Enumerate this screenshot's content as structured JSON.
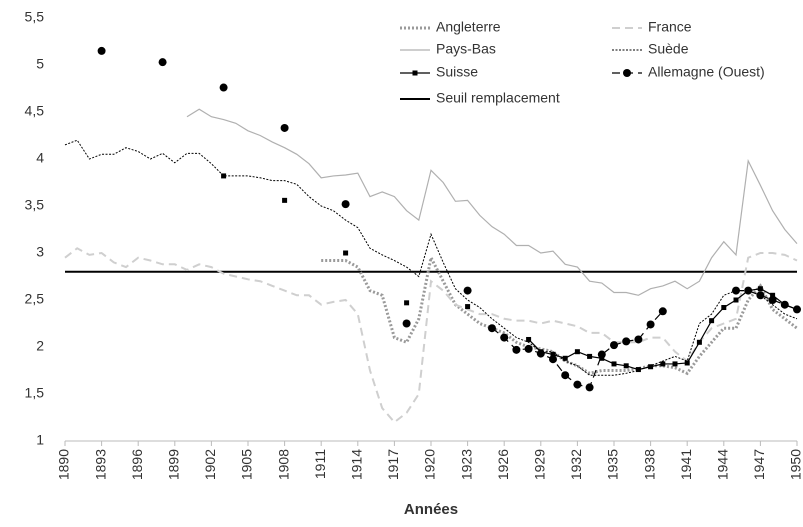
{
  "chart_data": {
    "type": "line",
    "x_label": "Années",
    "x": [
      1890,
      1891,
      1892,
      1893,
      1894,
      1895,
      1896,
      1897,
      1898,
      1899,
      1900,
      1901,
      1902,
      1903,
      1904,
      1905,
      1906,
      1907,
      1908,
      1909,
      1910,
      1911,
      1912,
      1913,
      1914,
      1915,
      1916,
      1917,
      1918,
      1919,
      1920,
      1921,
      1922,
      1923,
      1924,
      1925,
      1926,
      1927,
      1928,
      1929,
      1930,
      1931,
      1932,
      1933,
      1934,
      1935,
      1936,
      1937,
      1938,
      1939,
      1940,
      1941,
      1942,
      1943,
      1944,
      1945,
      1946,
      1947,
      1948,
      1949,
      1950
    ],
    "xlim": [
      1890,
      1950
    ],
    "xticks": [
      1890,
      1893,
      1896,
      1899,
      1902,
      1905,
      1908,
      1911,
      1914,
      1917,
      1920,
      1923,
      1926,
      1929,
      1932,
      1935,
      1938,
      1941,
      1944,
      1947,
      1950
    ],
    "ylim": [
      1,
      5.5
    ],
    "yticks": [
      1,
      {
        "value": 1.5,
        "label": "1,5"
      },
      2,
      {
        "value": 2.5,
        "label": "2,5"
      },
      3,
      {
        "value": 3.5,
        "label": "3,5"
      },
      4,
      {
        "value": 4.5,
        "label": "4,5"
      },
      5,
      {
        "value": 5.5,
        "label": "5,5"
      }
    ],
    "grid": false,
    "legend": "top-right",
    "series": [
      {
        "name": "Angleterre",
        "color": "#9a9a9a",
        "dash": "dotted",
        "width": 3,
        "values": [
          null,
          null,
          null,
          null,
          null,
          null,
          null,
          null,
          null,
          null,
          null,
          null,
          null,
          null,
          null,
          null,
          null,
          null,
          null,
          null,
          null,
          2.92,
          2.92,
          2.92,
          2.85,
          2.6,
          2.55,
          2.1,
          2.05,
          2.3,
          2.95,
          2.7,
          2.45,
          2.35,
          2.25,
          2.2,
          2.15,
          2.05,
          2.0,
          1.98,
          1.95,
          1.85,
          1.8,
          1.72,
          1.75,
          1.75,
          1.75,
          1.77,
          1.8,
          1.8,
          1.78,
          1.72,
          1.9,
          2.05,
          2.2,
          2.2,
          2.5,
          2.65,
          2.4,
          2.3,
          2.2
        ]
      },
      {
        "name": "France",
        "color": "#cfcfcf",
        "dash": "dashed",
        "width": 2,
        "values": [
          2.95,
          3.05,
          2.98,
          3.0,
          2.9,
          2.85,
          2.95,
          2.92,
          2.88,
          2.88,
          2.82,
          2.88,
          2.85,
          2.78,
          2.75,
          2.72,
          2.7,
          2.65,
          2.6,
          2.55,
          2.55,
          2.45,
          2.48,
          2.5,
          2.35,
          1.75,
          1.35,
          1.2,
          1.3,
          1.5,
          2.7,
          2.6,
          2.45,
          2.4,
          2.35,
          2.35,
          2.3,
          2.28,
          2.28,
          2.25,
          2.28,
          2.25,
          2.22,
          2.15,
          2.15,
          2.05,
          2.05,
          2.05,
          2.1,
          2.1,
          1.95,
          1.85,
          2.05,
          2.2,
          2.25,
          2.3,
          2.95,
          3.0,
          3.0,
          2.98,
          2.92
        ]
      },
      {
        "name": "Pays-Bas",
        "color": "#b0b0b0",
        "dash": "solid",
        "width": 1.2,
        "values": [
          null,
          null,
          null,
          null,
          null,
          null,
          null,
          null,
          null,
          null,
          4.45,
          4.53,
          4.45,
          4.42,
          4.38,
          4.3,
          4.25,
          4.18,
          4.12,
          4.05,
          3.95,
          3.8,
          3.82,
          3.83,
          3.85,
          3.6,
          3.65,
          3.6,
          3.45,
          3.35,
          3.88,
          3.75,
          3.55,
          3.56,
          3.4,
          3.28,
          3.2,
          3.08,
          3.08,
          3.0,
          3.02,
          2.88,
          2.85,
          2.7,
          2.68,
          2.58,
          2.58,
          2.55,
          2.62,
          2.65,
          2.7,
          2.62,
          2.7,
          2.95,
          3.12,
          2.98,
          3.98,
          3.72,
          3.45,
          3.25,
          3.1
        ]
      },
      {
        "name": "Suède",
        "color": "#000000",
        "dash": "fine-dotted",
        "width": 1,
        "values": [
          4.15,
          4.2,
          4.0,
          4.05,
          4.05,
          4.12,
          4.08,
          4.0,
          4.06,
          3.96,
          4.06,
          4.06,
          3.95,
          3.82,
          3.82,
          3.82,
          3.8,
          3.77,
          3.77,
          3.73,
          3.6,
          3.5,
          3.45,
          3.35,
          3.27,
          3.05,
          2.98,
          2.92,
          2.85,
          2.75,
          3.2,
          2.9,
          2.62,
          2.5,
          2.42,
          2.3,
          2.2,
          2.1,
          2.05,
          1.95,
          1.95,
          1.85,
          1.8,
          1.7,
          1.7,
          1.7,
          1.72,
          1.75,
          1.8,
          1.85,
          1.9,
          1.85,
          2.25,
          2.35,
          2.55,
          2.6,
          2.6,
          2.55,
          2.45,
          2.35,
          2.3
        ]
      },
      {
        "name": "Suisse",
        "color": "#000000",
        "dash": "solid",
        "width": 1.2,
        "marker": "square",
        "values": [
          null,
          null,
          null,
          null,
          null,
          null,
          null,
          null,
          null,
          null,
          null,
          null,
          null,
          3.82,
          null,
          null,
          null,
          null,
          3.56,
          null,
          null,
          null,
          null,
          3.0,
          null,
          null,
          null,
          null,
          2.47,
          null,
          null,
          null,
          null,
          2.43,
          null,
          null,
          null,
          null,
          2.08,
          1.95,
          1.92,
          1.88,
          1.95,
          1.9,
          1.88,
          1.82,
          1.8,
          1.76,
          1.79,
          1.82,
          1.82,
          1.83,
          2.05,
          2.28,
          2.42,
          2.5,
          2.6,
          2.62,
          2.55,
          2.45,
          2.4
        ]
      },
      {
        "name": "Allemagne (Ouest)",
        "color": "#000000",
        "dash": "dashed",
        "width": 1.2,
        "marker": "circle",
        "values": [
          null,
          null,
          null,
          5.15,
          null,
          null,
          null,
          null,
          5.03,
          null,
          null,
          null,
          null,
          4.76,
          null,
          null,
          null,
          null,
          4.33,
          null,
          null,
          null,
          null,
          3.52,
          null,
          null,
          null,
          null,
          2.25,
          null,
          null,
          null,
          null,
          2.6,
          null,
          2.2,
          2.1,
          1.97,
          1.98,
          1.93,
          1.87,
          1.7,
          1.6,
          1.57,
          1.92,
          2.02,
          2.06,
          2.08,
          2.24,
          2.38,
          null,
          null,
          null,
          null,
          null,
          2.6,
          2.6,
          2.55,
          2.5,
          2.45,
          2.4
        ]
      }
    ],
    "threshold": {
      "name": "Seuil remplacement",
      "value": 2.8,
      "color": "#000000"
    }
  }
}
